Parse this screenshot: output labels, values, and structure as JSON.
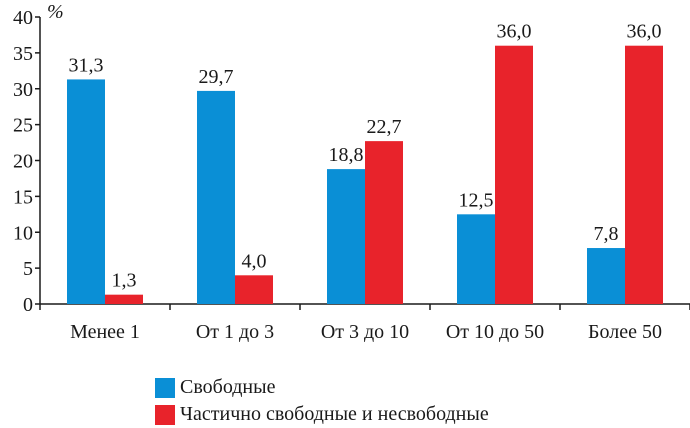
{
  "chart_data": {
    "type": "bar",
    "unit_label": "%",
    "categories": [
      "Менее 1",
      "От 1 до 3",
      "От 3 до 10",
      "От 10 до 50",
      "Более 50"
    ],
    "series": [
      {
        "name": "Свободные",
        "color": "#0a8fd6",
        "values": [
          31.3,
          29.7,
          18.8,
          12.5,
          7.8
        ],
        "labels": [
          "31,3",
          "29,7",
          "18,8",
          "12,5",
          "7,8"
        ]
      },
      {
        "name": "Частично свободные и несвободные",
        "color": "#e8232b",
        "values": [
          1.3,
          4.0,
          22.7,
          36.0,
          36.0
        ],
        "labels": [
          "1,3",
          "4,0",
          "22,7",
          "36,0",
          "36,0"
        ]
      }
    ],
    "ylim": [
      0,
      40
    ],
    "yticks": [
      0,
      5,
      10,
      15,
      20,
      25,
      30,
      35,
      40
    ],
    "grid": false,
    "legend_position": "bottom"
  }
}
